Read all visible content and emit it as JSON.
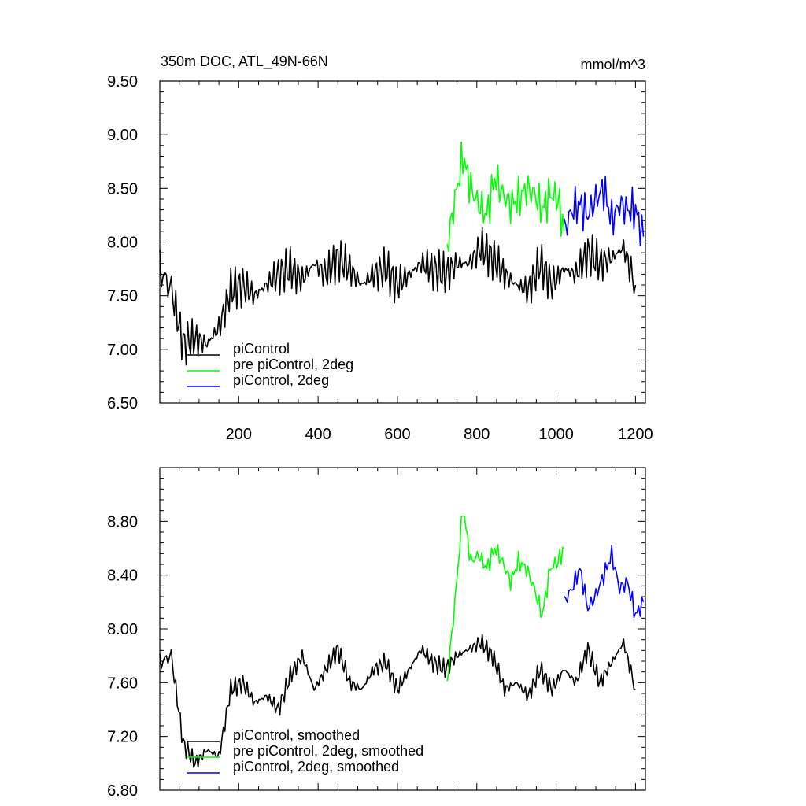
{
  "chart_data": [
    {
      "type": "line",
      "title": "350m DOC, ATL_49N-66N",
      "units": "mmol/m^3",
      "xlim": [
        1,
        1225
      ],
      "ylim": [
        6.5,
        9.5
      ],
      "x_ticks": [
        200,
        400,
        600,
        800,
        1000,
        1200
      ],
      "x_tick_labels": [
        "200",
        "400",
        "600",
        "800",
        "1000",
        "1200"
      ],
      "y_ticks": [
        6.5,
        7.0,
        7.5,
        8.0,
        8.5,
        9.0,
        9.5
      ],
      "y_tick_labels": [
        "6.50",
        "7.00",
        "7.50",
        "8.00",
        "8.50",
        "9.00",
        "9.50"
      ],
      "legend_position": "bottom-left",
      "series": [
        {
          "name": "piControl",
          "color": "#000000",
          "x": [
            1,
            30,
            60,
            90,
            120,
            150,
            180,
            210,
            240,
            270,
            300,
            330,
            360,
            390,
            420,
            450,
            480,
            510,
            540,
            570,
            600,
            630,
            660,
            690,
            720,
            750,
            780,
            810,
            840,
            870,
            900,
            930,
            960,
            990,
            1020,
            1050,
            1080,
            1110,
            1140,
            1170,
            1200
          ],
          "values": [
            7.75,
            7.55,
            7.05,
            7.1,
            7.05,
            7.2,
            7.55,
            7.6,
            7.5,
            7.6,
            7.7,
            7.75,
            7.65,
            7.8,
            7.7,
            7.85,
            7.75,
            7.6,
            7.7,
            7.75,
            7.6,
            7.7,
            7.8,
            7.75,
            7.7,
            7.8,
            7.8,
            7.95,
            7.85,
            7.7,
            7.6,
            7.55,
            7.8,
            7.6,
            7.75,
            7.7,
            7.9,
            7.8,
            7.85,
            7.95,
            7.6
          ]
        },
        {
          "name": "pre piControl, 2deg",
          "color": "#00ff00",
          "x": [
            725,
            745,
            765,
            785,
            805,
            825,
            845,
            865,
            885,
            905,
            925,
            945,
            965,
            985,
            1005,
            1020
          ],
          "values": [
            7.95,
            8.4,
            8.8,
            8.5,
            8.35,
            8.25,
            8.6,
            8.45,
            8.35,
            8.4,
            8.5,
            8.45,
            8.3,
            8.45,
            8.4,
            8.1
          ]
        },
        {
          "name": "piControl, 2deg",
          "color": "#0000ff",
          "x": [
            1020,
            1040,
            1060,
            1080,
            1100,
            1120,
            1140,
            1160,
            1180,
            1200,
            1220
          ],
          "values": [
            8.1,
            8.3,
            8.35,
            8.25,
            8.4,
            8.5,
            8.2,
            8.35,
            8.3,
            8.3,
            8.05
          ]
        }
      ]
    },
    {
      "type": "line",
      "title": "",
      "xlim": [
        1,
        1225
      ],
      "ylim": [
        6.8,
        9.2
      ],
      "x_ticks": [
        200,
        400,
        600,
        800,
        1000,
        1200
      ],
      "x_tick_labels": [
        "",
        "",
        "",
        "",
        "",
        ""
      ],
      "y_ticks": [
        6.8,
        7.2,
        7.6,
        8.0,
        8.4,
        8.8
      ],
      "y_tick_labels": [
        "6.80",
        "7.20",
        "7.60",
        "8.00",
        "8.40",
        "8.80"
      ],
      "legend_position": "bottom-left",
      "series": [
        {
          "name": "piControl, smoothed",
          "color": "#000000",
          "x": [
            1,
            30,
            60,
            90,
            120,
            150,
            180,
            210,
            240,
            270,
            300,
            330,
            360,
            390,
            420,
            450,
            480,
            510,
            540,
            570,
            600,
            630,
            660,
            690,
            720,
            750,
            780,
            810,
            840,
            870,
            900,
            930,
            960,
            990,
            1020,
            1050,
            1080,
            1110,
            1140,
            1170,
            1200
          ],
          "values": [
            7.75,
            7.8,
            7.15,
            7.0,
            7.1,
            7.05,
            7.55,
            7.6,
            7.45,
            7.5,
            7.4,
            7.65,
            7.8,
            7.55,
            7.7,
            7.85,
            7.6,
            7.55,
            7.7,
            7.75,
            7.55,
            7.7,
            7.85,
            7.75,
            7.7,
            7.8,
            7.85,
            7.9,
            7.8,
            7.55,
            7.6,
            7.5,
            7.7,
            7.55,
            7.7,
            7.6,
            7.85,
            7.6,
            7.75,
            7.9,
            7.55
          ]
        },
        {
          "name": "pre piControl, 2deg, smoothed",
          "color": "#00ff00",
          "x": [
            725,
            745,
            765,
            785,
            805,
            825,
            845,
            865,
            885,
            905,
            925,
            945,
            965,
            985,
            1005,
            1020
          ],
          "values": [
            7.6,
            8.2,
            8.9,
            8.5,
            8.55,
            8.45,
            8.6,
            8.5,
            8.35,
            8.5,
            8.45,
            8.3,
            8.1,
            8.45,
            8.5,
            8.6
          ]
        },
        {
          "name": "piControl, 2deg, smoothed",
          "color": "#0000ff",
          "x": [
            1020,
            1040,
            1060,
            1080,
            1100,
            1120,
            1140,
            1160,
            1180,
            1200,
            1220
          ],
          "values": [
            8.2,
            8.3,
            8.45,
            8.15,
            8.25,
            8.4,
            8.55,
            8.3,
            8.35,
            8.1,
            8.2
          ]
        }
      ]
    }
  ]
}
